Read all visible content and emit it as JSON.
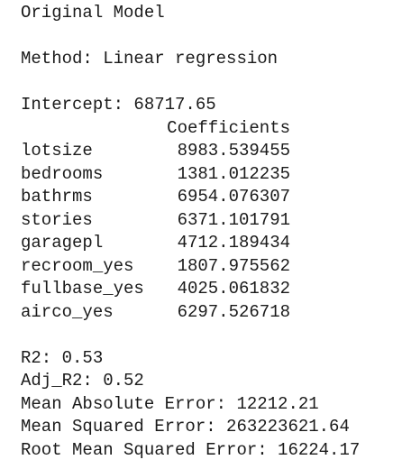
{
  "title": "Original Model",
  "method": "Method: Linear regression",
  "intercept": "Intercept: 68717.65",
  "table": {
    "header": "Coefficients",
    "rows": [
      [
        "lotsize",
        "8983.539455"
      ],
      [
        "bedrooms",
        "1381.012235"
      ],
      [
        "bathrms",
        "6954.076307"
      ],
      [
        "stories",
        "6371.101791"
      ],
      [
        "garagepl",
        "4712.189434"
      ],
      [
        "recroom_yes",
        "1807.975562"
      ],
      [
        "fullbase_yes",
        "4025.061832"
      ],
      [
        "airco_yes",
        "6297.526718"
      ]
    ]
  },
  "metrics": [
    "R2: 0.53",
    "Adj_R2: 0.52",
    "Mean Absolute Error: 12212.21",
    "Mean Squared Error: 263223621.64",
    "Root Mean Squared Error: 16224.17"
  ]
}
